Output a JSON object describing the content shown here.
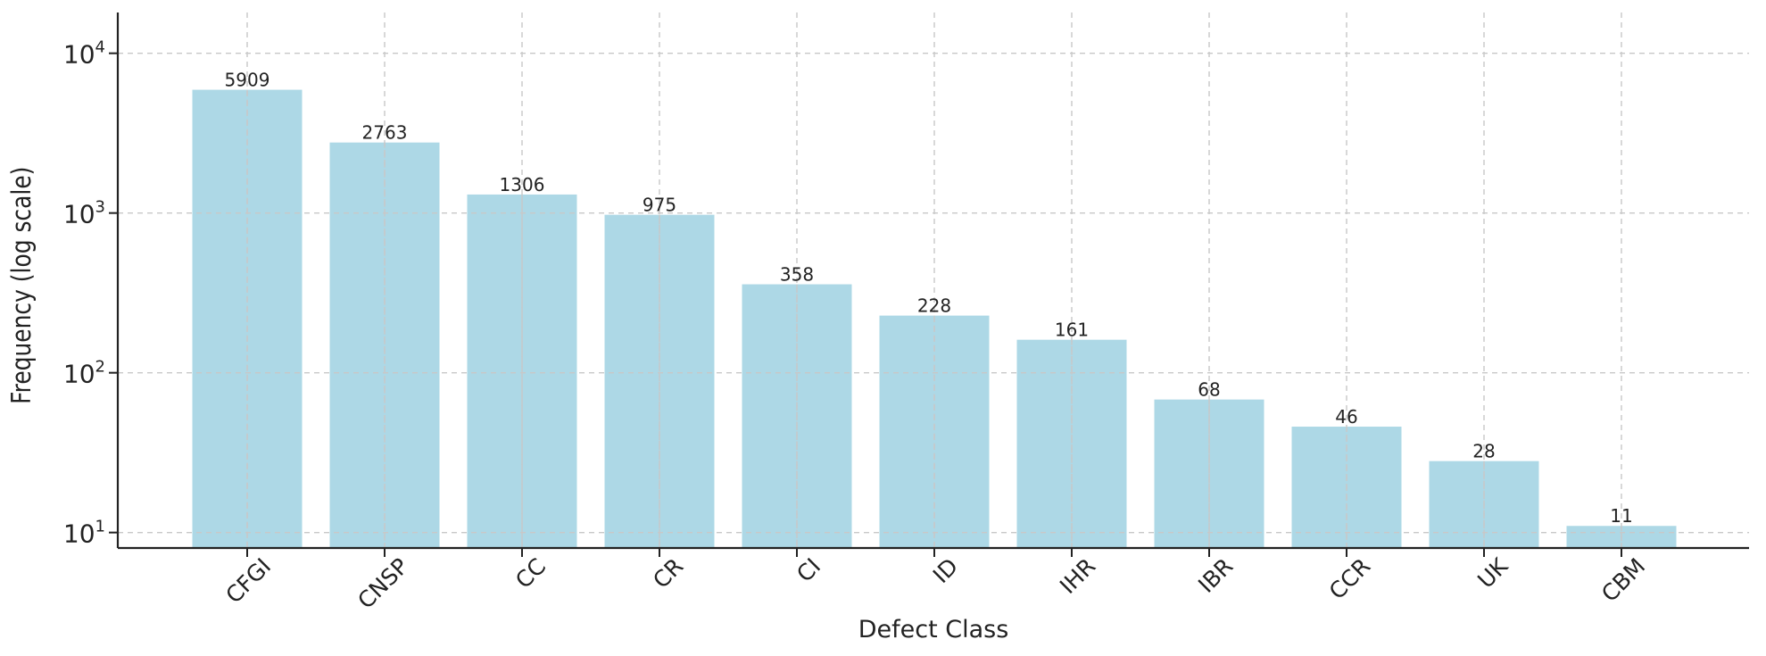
{
  "chart_data": {
    "type": "bar",
    "title": "",
    "xlabel": "Defect Class",
    "ylabel": "Frequency (log scale)",
    "scale": "log",
    "grid": true,
    "ylim": [
      8,
      18000
    ],
    "categories": [
      "CFGI",
      "CNSP",
      "CC",
      "CR",
      "CI",
      "ID",
      "IHR",
      "IBR",
      "CCR",
      "UK",
      "CBM"
    ],
    "values": [
      5909,
      2763,
      1306,
      975,
      358,
      228,
      161,
      68,
      46,
      28,
      11
    ],
    "data_labels": [
      "5909",
      "2763",
      "1306",
      "975",
      "358",
      "228",
      "161",
      "68",
      "46",
      "28",
      "11"
    ],
    "y_ticks": [
      {
        "value": 10,
        "base": "10",
        "exponent": "1"
      },
      {
        "value": 100,
        "base": "10",
        "exponent": "2"
      },
      {
        "value": 1000,
        "base": "10",
        "exponent": "3"
      },
      {
        "value": 10000,
        "base": "10",
        "exponent": "4"
      }
    ],
    "colors": {
      "bar": "#add8e6",
      "grid": "#c8c8c8",
      "axis": "#222222"
    }
  }
}
